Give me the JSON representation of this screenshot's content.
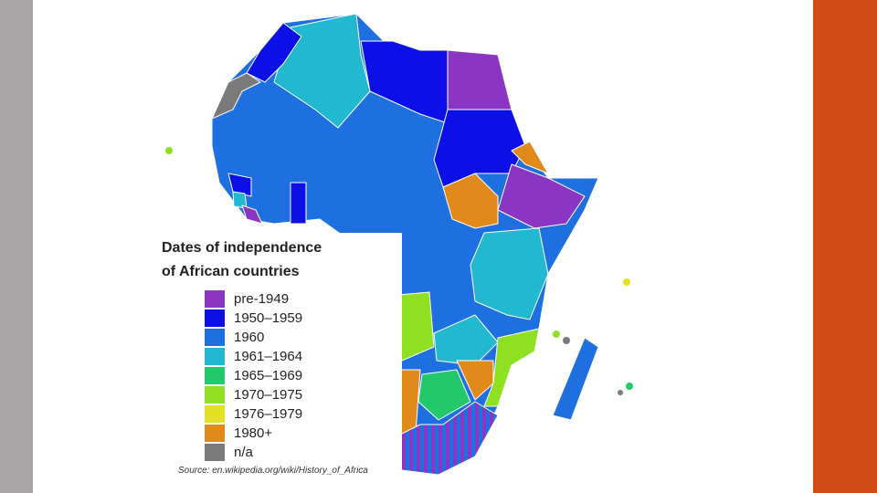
{
  "legend": {
    "title_lines": [
      "Dates of independence",
      "of African countries"
    ],
    "items": [
      {
        "label": "pre-1949",
        "color": "#8a35c4"
      },
      {
        "label": "1950–1959",
        "color": "#0c10e6"
      },
      {
        "label": "1960",
        "color": "#1e6fe0"
      },
      {
        "label": "1961–1964",
        "color": "#22b8d0"
      },
      {
        "label": "1965–1969",
        "color": "#22c86a"
      },
      {
        "label": "1970–1975",
        "color": "#8fe022"
      },
      {
        "label": "1976–1979",
        "color": "#e4e024"
      },
      {
        "label": "1980+",
        "color": "#e08a1c"
      },
      {
        "label": "n/a",
        "color": "#7a7a7a"
      }
    ]
  },
  "source": "Source: en.wikipedia.org/wiki/History_of_Africa"
}
